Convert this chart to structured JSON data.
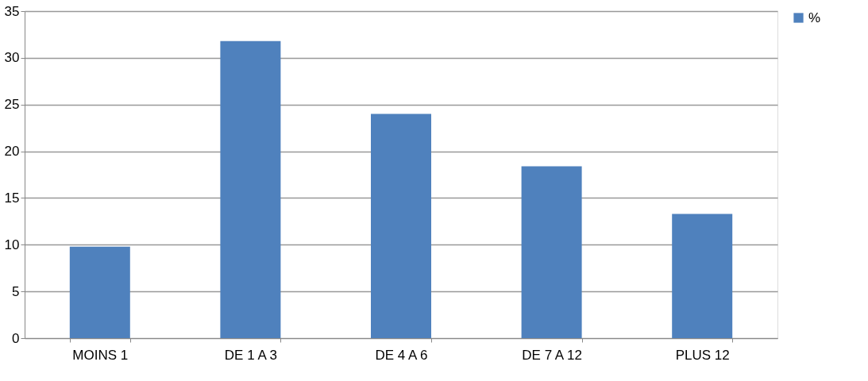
{
  "chart_data": {
    "type": "bar",
    "categories": [
      "MOINS 1",
      "DE 1 A 3",
      "DE 4 A 6",
      "DE 7 A 12",
      "PLUS 12"
    ],
    "series": [
      {
        "name": "%",
        "color": "#4f81bd",
        "values": [
          9.8,
          31.8,
          24.0,
          18.4,
          13.3
        ]
      }
    ],
    "ylim": [
      0,
      35
    ],
    "yticks": [
      0,
      5,
      10,
      15,
      20,
      25,
      30,
      35
    ],
    "grid": "y",
    "legend": "right"
  }
}
